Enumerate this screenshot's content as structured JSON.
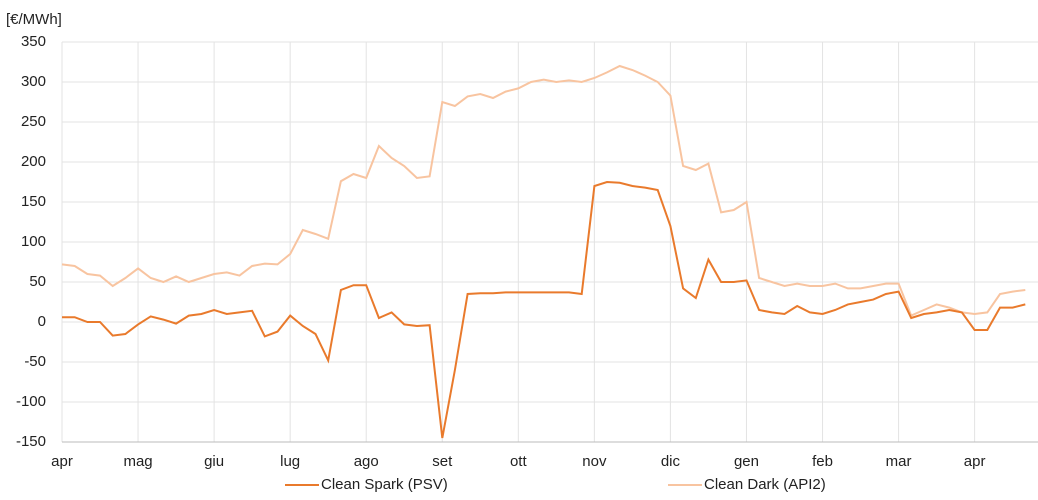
{
  "chart_data": {
    "type": "line",
    "y_label": "[€/MWh]",
    "categories": [
      "apr",
      null,
      null,
      null,
      null,
      null,
      "mag",
      null,
      null,
      null,
      null,
      null,
      "giu",
      null,
      null,
      null,
      null,
      null,
      "lug",
      null,
      null,
      null,
      null,
      null,
      "ago",
      null,
      null,
      null,
      null,
      null,
      "set",
      null,
      null,
      null,
      null,
      null,
      "ott",
      null,
      null,
      null,
      null,
      null,
      "nov",
      null,
      null,
      null,
      null,
      null,
      "dic",
      null,
      null,
      null,
      null,
      null,
      "gen",
      null,
      null,
      null,
      null,
      null,
      "feb",
      null,
      null,
      null,
      null,
      null,
      "mar",
      null,
      null,
      null,
      null,
      null,
      "apr",
      null,
      null,
      null,
      null
    ],
    "series": [
      {
        "name": "Clean Spark (PSV)",
        "color": "#e97a2c",
        "values": [
          6,
          6,
          0,
          0,
          -17,
          -15,
          -3,
          7,
          3,
          -2,
          8,
          10,
          15,
          10,
          12,
          14,
          -18,
          -12,
          8,
          -5,
          -15,
          -48,
          40,
          46,
          46,
          5,
          12,
          -3,
          -5,
          -4,
          -145,
          -60,
          35,
          36,
          36,
          37,
          37,
          37,
          37,
          37,
          37,
          35,
          170,
          175,
          174,
          170,
          168,
          165,
          120,
          42,
          30,
          78,
          50,
          50,
          52,
          15,
          12,
          10,
          20,
          12,
          10,
          15,
          22,
          25,
          28,
          35,
          38,
          5,
          10,
          12,
          15,
          12,
          -10,
          -10,
          18,
          18,
          22
        ]
      },
      {
        "name": "Clean Dark (API2)",
        "color": "#f8c4a0",
        "values": [
          72,
          70,
          60,
          58,
          45,
          55,
          67,
          55,
          50,
          57,
          50,
          55,
          60,
          62,
          58,
          70,
          73,
          72,
          85,
          115,
          110,
          104,
          176,
          185,
          180,
          220,
          205,
          195,
          180,
          182,
          275,
          270,
          282,
          285,
          280,
          288,
          292,
          300,
          303,
          300,
          302,
          300,
          305,
          312,
          320,
          315,
          308,
          300,
          283,
          195,
          190,
          198,
          137,
          140,
          150,
          55,
          50,
          45,
          48,
          45,
          45,
          48,
          42,
          42,
          45,
          48,
          48,
          8,
          15,
          22,
          18,
          12,
          10,
          12,
          35,
          38,
          40
        ]
      }
    ],
    "ylim": [
      -150,
      350
    ],
    "yticks": [
      -150,
      -100,
      -50,
      0,
      50,
      100,
      150,
      200,
      250,
      300,
      350
    ],
    "grid": true
  }
}
